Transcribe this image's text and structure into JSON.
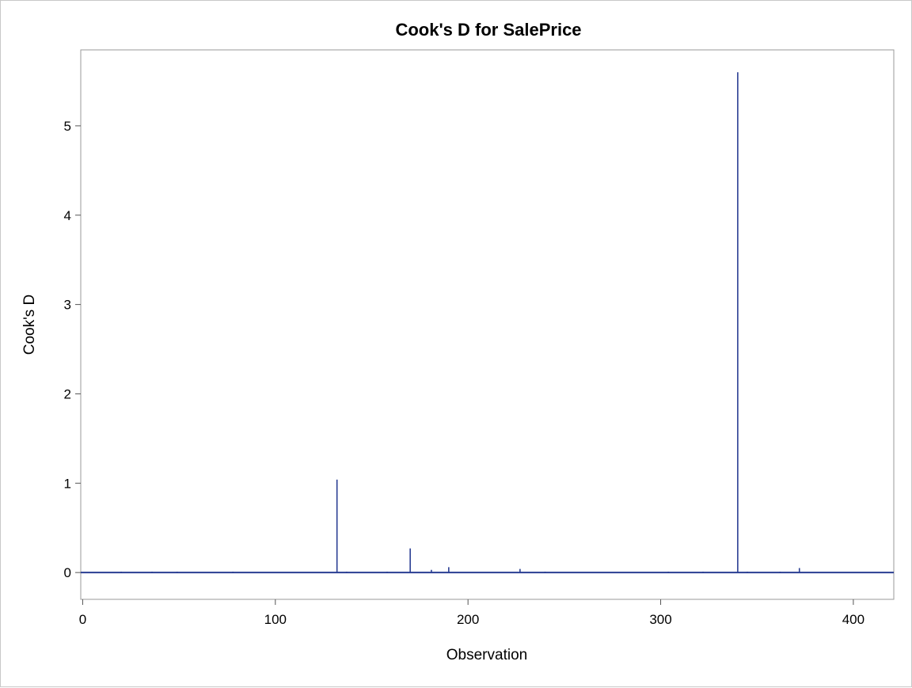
{
  "chart_data": {
    "type": "needle",
    "title": "Cook's D for SalePrice",
    "xlabel": "Observation",
    "ylabel": "Cook's D",
    "xlim": [
      -1,
      421
    ],
    "ylim": [
      -0.3,
      5.85
    ],
    "xticks": [
      0,
      100,
      200,
      300,
      400
    ],
    "yticks": [
      0,
      1,
      2,
      3,
      4,
      5
    ],
    "grid": false,
    "series_color": "#2a3e93",
    "baseline": 0,
    "x": [
      20,
      36,
      49,
      78,
      132,
      137,
      158,
      170,
      181,
      190,
      227,
      240,
      304,
      322,
      340,
      345,
      362,
      372
    ],
    "values": [
      0.01,
      0.01,
      0.01,
      0.01,
      1.04,
      0.01,
      0.01,
      0.27,
      0.03,
      0.06,
      0.04,
      0.01,
      0.01,
      0.01,
      5.6,
      0.01,
      0.01,
      0.05
    ]
  }
}
